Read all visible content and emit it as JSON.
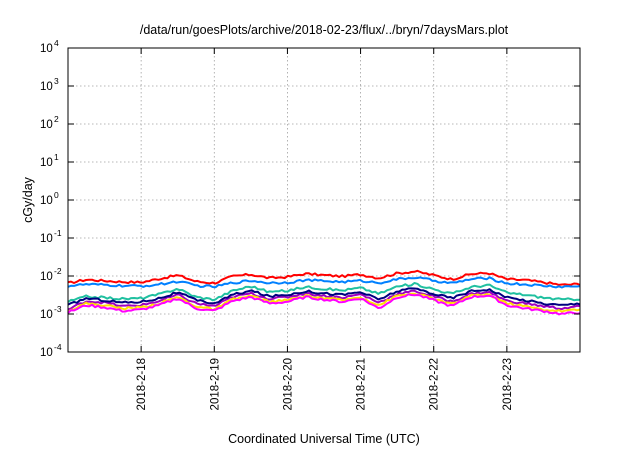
{
  "chart_data": {
    "type": "line",
    "title": "/data/run/goesPlots/archive/2018-02-23/flux/../bryn/7daysMars.plot",
    "xlabel": "Coordinated Universal Time (UTC)",
    "ylabel": "cGy/day",
    "yscale": "log",
    "ylim": [
      0.0001,
      10000
    ],
    "yticks": [
      {
        "value": 0.0001,
        "base": "10",
        "exp": "-4"
      },
      {
        "value": 0.001,
        "base": "10",
        "exp": "-3"
      },
      {
        "value": 0.01,
        "base": "10",
        "exp": "-2"
      },
      {
        "value": 0.1,
        "base": "10",
        "exp": "-1"
      },
      {
        "value": 1,
        "base": "10",
        "exp": "0"
      },
      {
        "value": 10,
        "base": "10",
        "exp": "1"
      },
      {
        "value": 100,
        "base": "10",
        "exp": "2"
      },
      {
        "value": 1000,
        "base": "10",
        "exp": "3"
      },
      {
        "value": 10000,
        "base": "10",
        "exp": "4"
      }
    ],
    "xlim": [
      "2018-02-17",
      "2018-02-24"
    ],
    "xticks": [
      "2018-2-18",
      "2018-2-19",
      "2018-2-20",
      "2018-2-21",
      "2018-2-22",
      "2018-2-23"
    ],
    "grid": true,
    "x": [
      "2018-02-17",
      "2018-02-17T06",
      "2018-02-17T12",
      "2018-02-17T18",
      "2018-02-18",
      "2018-02-18T06",
      "2018-02-18T12",
      "2018-02-18T18",
      "2018-02-19",
      "2018-02-19T06",
      "2018-02-19T12",
      "2018-02-19T18",
      "2018-02-20",
      "2018-02-20T06",
      "2018-02-20T12",
      "2018-02-20T18",
      "2018-02-21",
      "2018-02-21T06",
      "2018-02-21T12",
      "2018-02-21T18",
      "2018-02-22",
      "2018-02-22T06",
      "2018-02-22T12",
      "2018-02-22T18",
      "2018-02-23",
      "2018-02-23T06",
      "2018-02-23T12",
      "2018-02-23T18",
      "2018-02-24"
    ],
    "series": [
      {
        "color": "#ff0000",
        "values": [
          0.0065,
          0.008,
          0.0075,
          0.007,
          0.0068,
          0.0085,
          0.0105,
          0.0072,
          0.0065,
          0.0098,
          0.011,
          0.0088,
          0.0095,
          0.0115,
          0.0105,
          0.0098,
          0.011,
          0.0088,
          0.0118,
          0.0132,
          0.0105,
          0.0082,
          0.0112,
          0.012,
          0.0082,
          0.0078,
          0.0068,
          0.0058,
          0.0062
        ]
      },
      {
        "color": "#0080ff",
        "values": [
          0.0055,
          0.006,
          0.0058,
          0.0055,
          0.0054,
          0.006,
          0.0072,
          0.0056,
          0.0052,
          0.0066,
          0.0076,
          0.0066,
          0.0068,
          0.0078,
          0.0074,
          0.007,
          0.0075,
          0.0066,
          0.0082,
          0.0092,
          0.0076,
          0.0064,
          0.0082,
          0.0088,
          0.0064,
          0.006,
          0.0055,
          0.0052,
          0.0054
        ]
      },
      {
        "color": "#20c0a0",
        "values": [
          0.0021,
          0.0029,
          0.0027,
          0.0025,
          0.0026,
          0.0033,
          0.0047,
          0.0028,
          0.0024,
          0.0041,
          0.0054,
          0.0038,
          0.0041,
          0.0052,
          0.0046,
          0.0042,
          0.0049,
          0.0034,
          0.0053,
          0.0062,
          0.0045,
          0.0034,
          0.0051,
          0.0058,
          0.0036,
          0.0032,
          0.0027,
          0.0024,
          0.0025
        ]
      },
      {
        "color": "#a000c0",
        "values": [
          0.0013,
          0.0022,
          0.002,
          0.0016,
          0.0017,
          0.0022,
          0.0032,
          0.0019,
          0.0016,
          0.0028,
          0.0035,
          0.0025,
          0.0028,
          0.0035,
          0.003,
          0.0027,
          0.0033,
          0.002,
          0.0034,
          0.004,
          0.0029,
          0.0021,
          0.0034,
          0.0038,
          0.0022,
          0.0019,
          0.0016,
          0.0014,
          0.0016
        ]
      },
      {
        "color": "#000080",
        "values": [
          0.0017,
          0.0026,
          0.0023,
          0.002,
          0.0021,
          0.0026,
          0.0037,
          0.0023,
          0.0019,
          0.0032,
          0.0041,
          0.0029,
          0.0032,
          0.004,
          0.0035,
          0.0032,
          0.0038,
          0.0024,
          0.004,
          0.0047,
          0.0034,
          0.0026,
          0.004,
          0.0045,
          0.0027,
          0.0023,
          0.0019,
          0.0017,
          0.0019
        ]
      },
      {
        "color": "#ffe000",
        "values": [
          0.0012,
          0.0019,
          0.0017,
          0.0014,
          0.0015,
          0.0019,
          0.0028,
          0.0016,
          0.0013,
          0.0024,
          0.003,
          0.0021,
          0.0023,
          0.003,
          0.0026,
          0.0023,
          0.0028,
          0.0017,
          0.003,
          0.0035,
          0.0025,
          0.0018,
          0.003,
          0.0033,
          0.0019,
          0.0016,
          0.0013,
          0.0012,
          0.0013
        ]
      },
      {
        "color": "#ff00ff",
        "values": [
          0.0011,
          0.0017,
          0.0015,
          0.0012,
          0.0013,
          0.0017,
          0.0026,
          0.0014,
          0.0012,
          0.0022,
          0.0028,
          0.0019,
          0.0021,
          0.0028,
          0.0024,
          0.0021,
          0.0026,
          0.0014,
          0.0028,
          0.0033,
          0.0023,
          0.0016,
          0.0028,
          0.0031,
          0.0017,
          0.0014,
          0.0012,
          0.001,
          0.0011
        ]
      }
    ]
  }
}
